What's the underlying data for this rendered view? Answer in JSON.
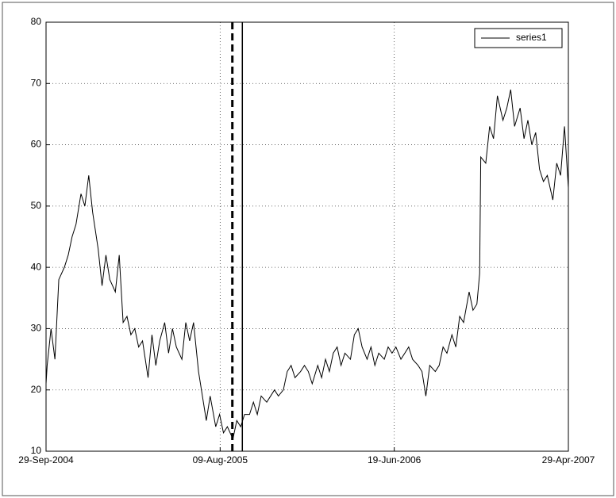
{
  "chart_data": {
    "type": "line",
    "x": [
      "2004-09-29",
      "2004-10-01",
      "2004-10-08",
      "2004-10-15",
      "2004-10-22",
      "2004-11-01",
      "2004-11-08",
      "2004-11-15",
      "2004-11-22",
      "2004-12-01",
      "2004-12-08",
      "2004-12-15",
      "2004-12-22",
      "2005-01-01",
      "2005-01-08",
      "2005-01-15",
      "2005-01-22",
      "2005-02-01",
      "2005-02-08",
      "2005-02-15",
      "2005-02-22",
      "2005-03-01",
      "2005-03-08",
      "2005-03-15",
      "2005-03-22",
      "2005-04-01",
      "2005-04-08",
      "2005-04-15",
      "2005-04-22",
      "2005-05-01",
      "2005-05-08",
      "2005-05-15",
      "2005-05-22",
      "2005-06-01",
      "2005-06-08",
      "2005-06-15",
      "2005-06-22",
      "2005-07-01",
      "2005-07-08",
      "2005-07-15",
      "2005-07-22",
      "2005-08-01",
      "2005-08-08",
      "2005-08-15",
      "2005-08-22",
      "2005-09-01",
      "2005-09-08",
      "2005-09-15",
      "2005-09-22",
      "2005-10-01",
      "2005-10-08",
      "2005-10-15",
      "2005-10-22",
      "2005-11-01",
      "2005-11-08",
      "2005-11-15",
      "2005-11-22",
      "2005-12-01",
      "2005-12-08",
      "2005-12-15",
      "2005-12-22",
      "2006-01-01",
      "2006-01-08",
      "2006-01-15",
      "2006-01-22",
      "2006-02-01",
      "2006-02-08",
      "2006-02-15",
      "2006-02-22",
      "2006-03-01",
      "2006-03-08",
      "2006-03-15",
      "2006-03-22",
      "2006-04-01",
      "2006-04-08",
      "2006-04-15",
      "2006-04-22",
      "2006-05-01",
      "2006-05-08",
      "2006-05-15",
      "2006-05-22",
      "2006-06-01",
      "2006-06-08",
      "2006-06-15",
      "2006-06-22",
      "2006-07-01",
      "2006-07-08",
      "2006-07-15",
      "2006-07-22",
      "2006-08-01",
      "2006-08-08",
      "2006-08-15",
      "2006-08-22",
      "2006-09-01",
      "2006-09-08",
      "2006-09-15",
      "2006-09-22",
      "2006-10-01",
      "2006-10-08",
      "2006-10-15",
      "2006-10-22",
      "2006-11-01",
      "2006-11-08",
      "2006-11-15",
      "2006-11-20",
      "2006-11-22",
      "2006-12-01",
      "2006-12-08",
      "2006-12-15",
      "2006-12-22",
      "2007-01-01",
      "2007-01-08",
      "2007-01-15",
      "2007-01-22",
      "2007-02-01",
      "2007-02-08",
      "2007-02-15",
      "2007-02-22",
      "2007-03-01",
      "2007-03-08",
      "2007-03-15",
      "2007-03-22",
      "2007-04-01",
      "2007-04-08",
      "2007-04-15",
      "2007-04-22",
      "2007-04-29"
    ],
    "series": [
      {
        "name": "series1",
        "color": "#000000",
        "values": [
          21,
          24,
          30,
          25,
          38,
          40,
          42,
          45,
          47,
          52,
          50,
          55,
          49,
          43,
          37,
          42,
          38,
          36,
          42,
          31,
          32,
          29,
          30,
          27,
          28,
          22,
          29,
          24,
          28,
          31,
          26,
          30,
          27,
          25,
          31,
          28,
          31,
          23,
          19,
          15,
          19,
          14,
          16,
          13,
          14,
          12,
          15,
          14,
          16,
          16,
          18,
          16,
          19,
          18,
          19,
          20,
          19,
          20,
          23,
          24,
          22,
          23,
          24,
          23,
          21,
          24,
          22,
          25,
          23,
          26,
          27,
          24,
          26,
          25,
          29,
          30,
          27,
          25,
          27,
          24,
          26,
          25,
          27,
          26,
          27,
          25,
          26,
          27,
          25,
          24,
          23,
          19,
          24,
          23,
          24,
          27,
          26,
          29,
          27,
          32,
          31,
          36,
          33,
          34,
          39,
          58,
          57,
          63,
          61,
          68,
          64,
          66,
          69,
          63,
          66,
          61,
          64,
          60,
          62,
          56,
          54,
          55,
          51,
          57,
          55,
          63,
          53
        ]
      }
    ],
    "xlim": [
      "2004-09-29",
      "2007-04-29"
    ],
    "xticks": [
      {
        "value": "2004-09-29",
        "label": "29-Sep-2004"
      },
      {
        "value": "2005-08-09",
        "label": "09-Aug-2005"
      },
      {
        "value": "2006-06-19",
        "label": "19-Jun-2006"
      },
      {
        "value": "2007-04-29",
        "label": "29-Apr-2007"
      }
    ],
    "ylim": [
      10,
      80
    ],
    "yticks": [
      10,
      20,
      30,
      40,
      50,
      60,
      70,
      80
    ],
    "grid": true,
    "legend": "top-right",
    "vlines": [
      {
        "x": "2005-08-31",
        "style": "dashed"
      },
      {
        "x": "2005-09-18",
        "style": "solid"
      }
    ]
  }
}
